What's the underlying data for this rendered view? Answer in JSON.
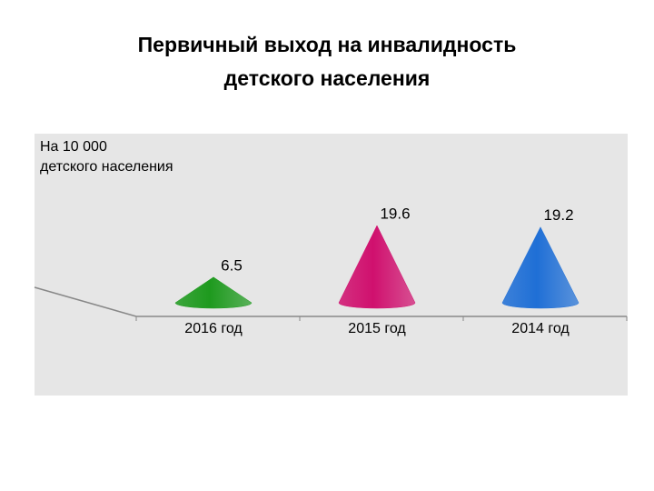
{
  "chart_data": {
    "type": "cone",
    "title": [
      "Первичный выход на инвалидность",
      "детского населения"
    ],
    "y_label": [
      "На 10 000",
      "детского населения"
    ],
    "categories": [
      "2016 год",
      "2015 год",
      "2014 год"
    ],
    "values": [
      6.5,
      19.6,
      19.2
    ],
    "colors": [
      "#1e9a1e",
      "#d0106e",
      "#1f6fd6"
    ]
  }
}
